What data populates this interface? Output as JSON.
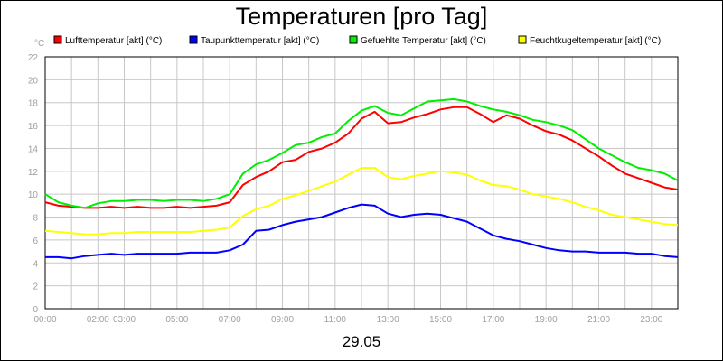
{
  "chart_data": {
    "type": "line",
    "title": "Temperaturen [pro Tag]",
    "yunit": "°C",
    "xlabel": "29.05",
    "ylim": [
      0,
      22
    ],
    "yticks": [
      0,
      2,
      4,
      6,
      8,
      10,
      12,
      14,
      16,
      18,
      20,
      22
    ],
    "xlim": [
      0,
      24
    ],
    "xticks": [
      {
        "value": 0,
        "label": "00:00"
      },
      {
        "value": 2,
        "label": "02:00"
      },
      {
        "value": 3,
        "label": "03:00"
      },
      {
        "value": 5,
        "label": "05:00"
      },
      {
        "value": 7,
        "label": "07:00"
      },
      {
        "value": 9,
        "label": "09:00"
      },
      {
        "value": 11,
        "label": "11:00"
      },
      {
        "value": 13,
        "label": "13:00"
      },
      {
        "value": 15,
        "label": "15:00"
      },
      {
        "value": 17,
        "label": "17:00"
      },
      {
        "value": 19,
        "label": "19:00"
      },
      {
        "value": 21,
        "label": "21:00"
      },
      {
        "value": 23,
        "label": "23:00"
      }
    ],
    "grid": true,
    "legend_position": "top",
    "x": [
      0,
      0.5,
      1,
      1.5,
      2,
      2.5,
      3,
      3.5,
      4,
      4.5,
      5,
      5.5,
      6,
      6.5,
      7,
      7.5,
      8,
      8.5,
      9,
      9.5,
      10,
      10.5,
      11,
      11.5,
      12,
      12.5,
      13,
      13.5,
      14,
      14.5,
      15,
      15.5,
      16,
      16.5,
      17,
      17.5,
      18,
      18.5,
      19,
      19.5,
      20,
      20.5,
      21,
      21.5,
      22,
      22.5,
      23,
      23.5,
      24
    ],
    "series": [
      {
        "name": "Lufttemperatur [akt] (°C)",
        "color": "#ff0000",
        "values": [
          9.3,
          9.0,
          8.9,
          8.8,
          8.8,
          8.9,
          8.8,
          8.9,
          8.8,
          8.8,
          8.9,
          8.8,
          8.9,
          9.0,
          9.3,
          10.8,
          11.5,
          12.0,
          12.8,
          13.0,
          13.7,
          14.0,
          14.5,
          15.3,
          16.6,
          17.2,
          16.2,
          16.3,
          16.7,
          17.0,
          17.4,
          17.6,
          17.6,
          17.0,
          16.3,
          16.9,
          16.6,
          16.0,
          15.5,
          15.2,
          14.7,
          14.0,
          13.3,
          12.5,
          11.8,
          11.4,
          11.0,
          10.6,
          10.4
        ]
      },
      {
        "name": "Taupunkttemperatur [akt] (°C)",
        "color": "#0000ff",
        "values": [
          4.5,
          4.5,
          4.4,
          4.6,
          4.7,
          4.8,
          4.7,
          4.8,
          4.8,
          4.8,
          4.8,
          4.9,
          4.9,
          4.9,
          5.1,
          5.6,
          6.8,
          6.9,
          7.3,
          7.6,
          7.8,
          8.0,
          8.4,
          8.8,
          9.1,
          9.0,
          8.3,
          8.0,
          8.2,
          8.3,
          8.2,
          7.9,
          7.6,
          7.0,
          6.4,
          6.1,
          5.9,
          5.6,
          5.3,
          5.1,
          5.0,
          5.0,
          4.9,
          4.9,
          4.9,
          4.8,
          4.8,
          4.6,
          4.5
        ]
      },
      {
        "name": "Gefuehlte Temperatur [akt] (°C)",
        "color": "#00ee00",
        "values": [
          10.0,
          9.3,
          9.0,
          8.8,
          9.2,
          9.4,
          9.4,
          9.5,
          9.5,
          9.4,
          9.5,
          9.5,
          9.4,
          9.6,
          10.0,
          11.8,
          12.6,
          13.0,
          13.6,
          14.3,
          14.5,
          15.0,
          15.3,
          16.4,
          17.3,
          17.7,
          17.1,
          16.9,
          17.5,
          18.1,
          18.2,
          18.3,
          18.1,
          17.7,
          17.4,
          17.2,
          16.9,
          16.5,
          16.3,
          16.0,
          15.6,
          14.8,
          14.0,
          13.4,
          12.8,
          12.3,
          12.1,
          11.8,
          11.2
        ]
      },
      {
        "name": "Feuchtkugeltemperatur [akt] (°C)",
        "color": "#ffff00",
        "values": [
          6.8,
          6.7,
          6.6,
          6.5,
          6.5,
          6.6,
          6.6,
          6.7,
          6.7,
          6.7,
          6.7,
          6.7,
          6.8,
          6.9,
          7.1,
          8.1,
          8.7,
          9.0,
          9.6,
          9.9,
          10.3,
          10.7,
          11.1,
          11.7,
          12.3,
          12.3,
          11.5,
          11.3,
          11.6,
          11.8,
          12.0,
          11.9,
          11.7,
          11.2,
          10.8,
          10.7,
          10.4,
          10.0,
          9.8,
          9.6,
          9.3,
          8.9,
          8.6,
          8.2,
          8.0,
          7.8,
          7.6,
          7.4,
          7.3
        ]
      }
    ]
  }
}
